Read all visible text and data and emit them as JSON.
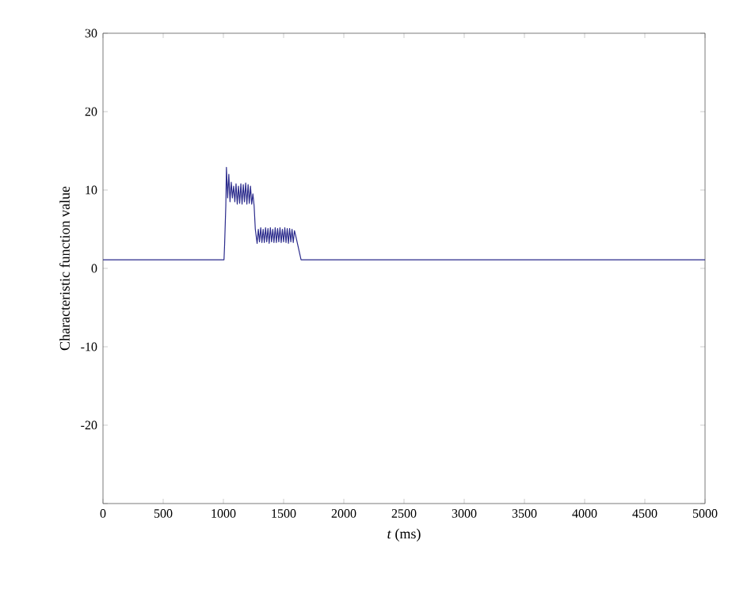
{
  "chart_data": {
    "type": "line",
    "xlabel": "*t* (ms)",
    "ylabel": "Characteristic function value",
    "xlim": [
      0,
      5000
    ],
    "ylim": [
      -30,
      30
    ],
    "xticks": [
      0,
      500,
      1000,
      1500,
      2000,
      2500,
      3000,
      3500,
      4000,
      4500,
      5000
    ],
    "yticks": [
      {
        "value": -30,
        "label": null
      },
      -20,
      -10,
      0,
      10,
      20,
      30
    ],
    "series": [
      {
        "color": "#2b2b8c",
        "x": [
          0,
          1005,
          1010,
          1020,
          1025,
          1035,
          1045,
          1055,
          1065,
          1075,
          1085,
          1095,
          1105,
          1115,
          1125,
          1135,
          1145,
          1155,
          1165,
          1175,
          1185,
          1195,
          1205,
          1215,
          1225,
          1235,
          1245,
          1255,
          1265,
          1280,
          1290,
          1300,
          1310,
          1320,
          1330,
          1340,
          1350,
          1360,
          1370,
          1380,
          1390,
          1400,
          1410,
          1420,
          1430,
          1440,
          1450,
          1460,
          1470,
          1480,
          1490,
          1500,
          1510,
          1520,
          1530,
          1540,
          1550,
          1560,
          1570,
          1580,
          1590,
          1600,
          1645,
          5000
        ],
        "values": [
          1.1,
          1.1,
          3,
          8,
          12.9,
          9,
          12,
          8.5,
          11,
          9,
          10.5,
          8.5,
          10.8,
          8.2,
          10.5,
          8.3,
          10.8,
          8.2,
          10.7,
          8.5,
          10.9,
          8.2,
          10.7,
          8.3,
          10.5,
          8.2,
          9.5,
          8,
          5,
          3.2,
          5,
          3.4,
          5.2,
          3.3,
          5,
          3.3,
          5.2,
          3.4,
          5.1,
          3.2,
          5.2,
          3.4,
          5,
          3.3,
          5.2,
          3.3,
          5.1,
          3.4,
          5.2,
          3.3,
          5,
          3.4,
          5.2,
          3.3,
          5.1,
          3.2,
          5.1,
          3.4,
          5,
          3.3,
          4.8,
          4.2,
          1.1,
          1.1
        ]
      }
    ],
    "marker": "none",
    "line_style": "solid"
  }
}
